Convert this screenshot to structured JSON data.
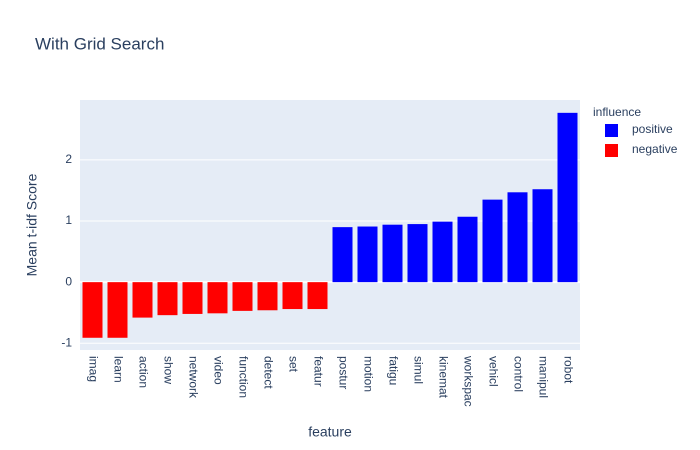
{
  "chart_data": {
    "type": "bar",
    "title": "With Grid Search",
    "x_label": "feature",
    "y_label": "Mean t-idf Score",
    "legend_title": "influence",
    "categories": [
      "imag",
      "learn",
      "action",
      "show",
      "network",
      "video",
      "function",
      "detect",
      "set",
      "featur",
      "postur",
      "motion",
      "fatigu",
      "simul",
      "kinemat",
      "workspac",
      "vehicl",
      "control",
      "manipul",
      "robot"
    ],
    "series": [
      {
        "name": "positive",
        "color": "#0000ff",
        "values": [
          null,
          null,
          null,
          null,
          null,
          null,
          null,
          null,
          null,
          null,
          0.9,
          0.91,
          0.94,
          0.95,
          0.99,
          1.07,
          1.35,
          1.47,
          1.52,
          2.77
        ]
      },
      {
        "name": "negative",
        "color": "#ff0000",
        "values": [
          -0.91,
          -0.91,
          -0.58,
          -0.54,
          -0.52,
          -0.51,
          -0.47,
          -0.46,
          -0.44,
          -0.44,
          null,
          null,
          null,
          null,
          null,
          null,
          null,
          null,
          null,
          null
        ]
      }
    ],
    "ylim": [
      -1.11,
      2.98
    ],
    "yticks": [
      -1,
      0,
      1,
      2
    ],
    "grid": true,
    "legend": "right"
  }
}
